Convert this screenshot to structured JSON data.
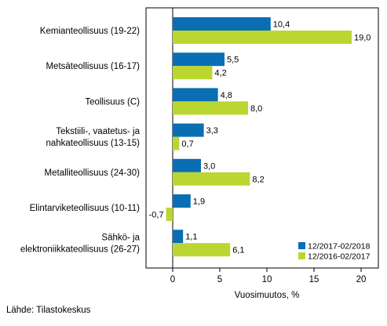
{
  "chart_data": {
    "type": "bar",
    "orientation": "horizontal",
    "categories": [
      [
        "Kemianteollisuus (19-22)"
      ],
      [
        "Metsäteollisuus (16-17)"
      ],
      [
        "Teollisuus (C)"
      ],
      [
        "Tekstiili-, vaatetus- ja",
        "nahkateollisuus (13-15)"
      ],
      [
        "Metalliteollisuus (24-30)"
      ],
      [
        "Elintarviketeollisuus (10-11)"
      ],
      [
        "Sähkö- ja",
        "elektroniikkateollisuus (26-27)"
      ]
    ],
    "series": [
      {
        "name": "12/2017-02/2018",
        "color": "#0a6eb4",
        "values": [
          10.4,
          5.5,
          4.8,
          3.3,
          3.0,
          1.9,
          1.1
        ],
        "labels": [
          "10,4",
          "5,5",
          "4,8",
          "3,3",
          "3,0",
          "1,9",
          "1,1"
        ]
      },
      {
        "name": "12/2016-02/2017",
        "color": "#bcd631",
        "values": [
          19.0,
          4.2,
          8.0,
          0.7,
          8.2,
          -0.7,
          6.1
        ],
        "labels": [
          "19,0",
          "4,2",
          "8,0",
          "0,7",
          "8,2",
          "-0,7",
          "6,1"
        ]
      }
    ],
    "xlim": [
      -3,
      21.5
    ],
    "xticks": [
      0,
      5,
      10,
      15,
      20
    ],
    "xtick_labels": [
      "0",
      "5",
      "10",
      "15",
      "20"
    ],
    "xlabel": "Vuosimuutos, %",
    "legend_position": "bottom-right",
    "grid": false
  },
  "source": "Lähde: Tilastokeskus"
}
